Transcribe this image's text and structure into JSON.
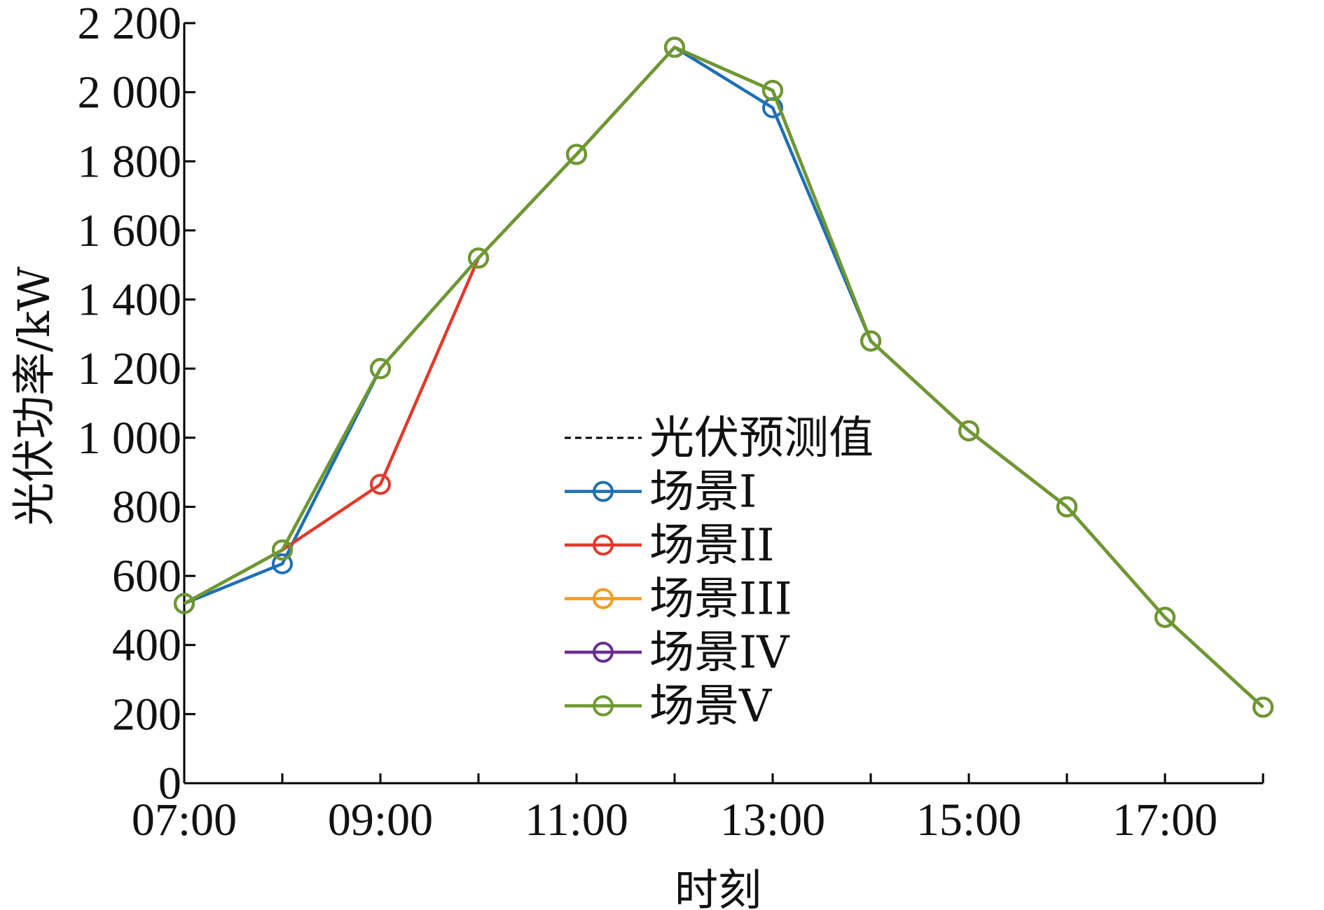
{
  "chart_data": {
    "type": "line",
    "xlabel": "时刻",
    "ylabel": "光伏功率/kW",
    "ylim": [
      0,
      2200
    ],
    "x": [
      "07:00",
      "08:00",
      "09:00",
      "10:00",
      "11:00",
      "12:00",
      "13:00",
      "14:00",
      "15:00",
      "16:00",
      "17:00",
      "18:00"
    ],
    "x_tick_labels": [
      "07:00",
      "09:00",
      "11:00",
      "13:00",
      "15:00",
      "17:00"
    ],
    "y_tick_labels": [
      "0",
      "200",
      "400",
      "600",
      "800",
      "1 000",
      "1 200",
      "1 400",
      "1 600",
      "1 800",
      "2 000",
      "2 200"
    ],
    "y_ticks": [
      0,
      200,
      400,
      600,
      800,
      1000,
      1200,
      1400,
      1600,
      1800,
      2000,
      2200
    ],
    "legend_position": "center",
    "series": [
      {
        "name": "光伏预测值",
        "color": "#000000",
        "line_style": "dashed",
        "marker": "none",
        "values": [
          520,
          675,
          1200,
          1520,
          1820,
          2130,
          2005,
          1280,
          1020,
          800,
          480,
          220
        ]
      },
      {
        "name": "场景I",
        "color": "#1f6fb4",
        "line_style": "solid",
        "marker": "circle",
        "values": [
          520,
          635,
          1200,
          1520,
          1820,
          2130,
          1955,
          1280,
          1020,
          800,
          480,
          220
        ]
      },
      {
        "name": "场景II",
        "color": "#e2392c",
        "line_style": "solid",
        "marker": "circle",
        "values": [
          520,
          675,
          865,
          1520,
          1820,
          2130,
          2005,
          1280,
          1020,
          800,
          480,
          220
        ]
      },
      {
        "name": "场景III",
        "color": "#f39c1f",
        "line_style": "solid",
        "marker": "circle",
        "values": [
          520,
          675,
          1200,
          1520,
          1820,
          2130,
          2005,
          1280,
          1020,
          800,
          480,
          220
        ]
      },
      {
        "name": "场景IV",
        "color": "#6a2c91",
        "line_style": "solid",
        "marker": "circle",
        "values": [
          520,
          675,
          1200,
          1520,
          1820,
          2130,
          2005,
          1280,
          1020,
          800,
          480,
          220
        ]
      },
      {
        "name": "场景V",
        "color": "#6b9a2e",
        "line_style": "solid",
        "marker": "circle",
        "values": [
          520,
          675,
          1200,
          1520,
          1820,
          2130,
          2005,
          1280,
          1020,
          800,
          480,
          220
        ]
      }
    ]
  }
}
